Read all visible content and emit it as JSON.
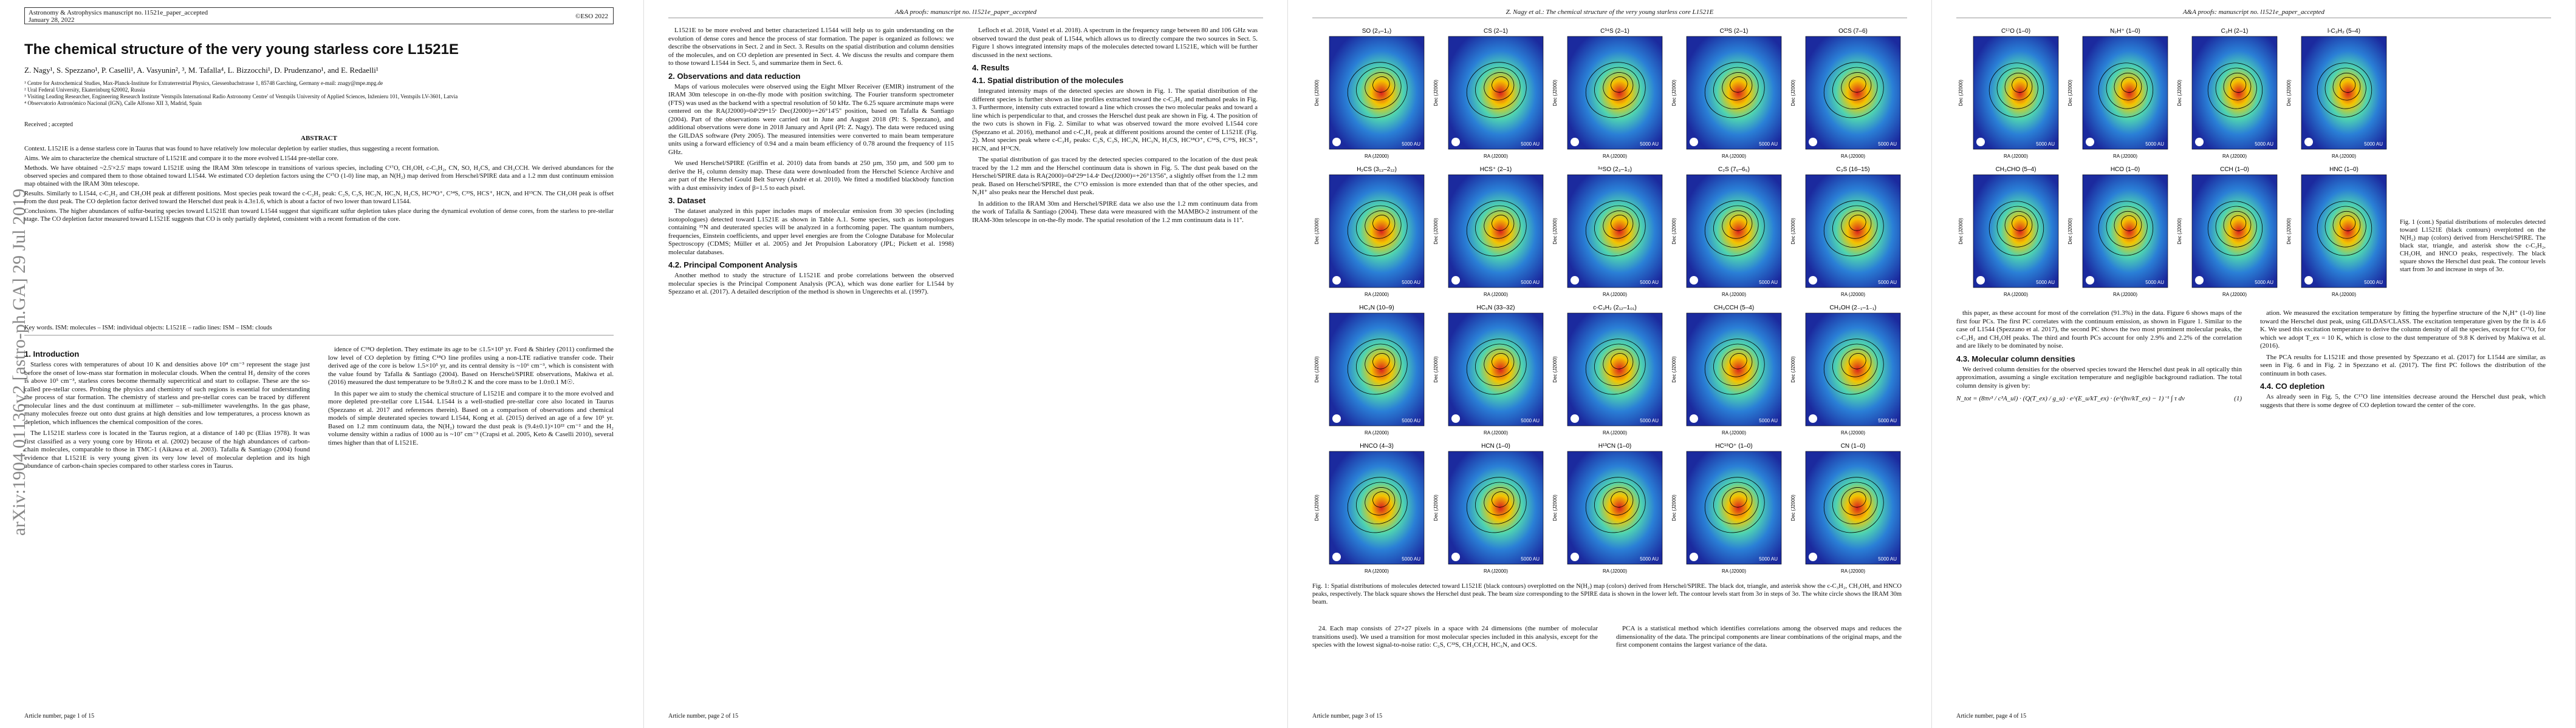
{
  "arxiv": "arXiv:1904.01136v2 [astro-ph.GA] 29 Jul 2019",
  "figure_axes": {
    "x": "RA (J2000)",
    "y": "Dec (J2000)",
    "scale": "5000 AU"
  },
  "pages": [
    {
      "journal": "Astronomy & Astrophysics manuscript no. l1521e_paper_accepted",
      "date": "January 28, 2022",
      "copyright": "©ESO 2022",
      "title": "The chemical structure of the very young starless core L1521E",
      "authors": "Z. Nagy¹, S. Spezzano¹, P. Caselli¹, A. Vasyunin², ³, M. Tafalla⁴, L. Bizzocchi¹, D. Prudenzano¹, and E. Redaelli¹",
      "affiliations": [
        "¹ Centre for Astrochemical Studies, Max-Planck-Institute for Extraterrestrial Physics, Giessenbachstrasse 1, 85748 Garching, Germany e-mail: znagy@mpe.mpg.de",
        "² Ural Federal University, Ekaterinburg 620002, Russia",
        "³ Visiting Leading Researcher, Engineering Research Institute 'Ventspils International Radio Astronomy Centre' of Ventspils University of Applied Sciences, Inženieru 101, Ventspils LV-3601, Latvia",
        "⁴ Observatorio Astronómico Nacional (IGN), Calle Alfonso XII 3, Madrid, Spain"
      ],
      "received": "Received ; accepted",
      "abstract_title": "ABSTRACT",
      "abstract": [
        "Context. L1521E is a dense starless core in Taurus that was found to have relatively low molecular depletion by earlier studies, thus suggesting a recent formation.",
        "Aims. We aim to characterize the chemical structure of L1521E and compare it to the more evolved L1544 pre-stellar core.",
        "Methods. We have obtained ~2.5'×2.5' maps toward L1521E using the IRAM 30m telescope in transitions of various species, including C¹⁷O, CH₃OH, c-C₃H₂, CN, SO, H₂CS, and CH₃CCH. We derived abundances for the observed species and compared them to those obtained toward L1544. We estimated CO depletion factors using the C¹⁷O (1-0) line map, an N(H₂) map derived from Herschel/SPIRE data and a 1.2 mm dust continuum emission map obtained with the IRAM 30m telescope.",
        "Results. Similarly to L1544, c-C₃H₂ and CH₃OH peak at different positions. Most species peak toward the c-C₃H₂ peak: C₂S, C₃S, HC₃N, HC₅N, H₂CS, HC¹⁸O⁺, C³⁴S, C³³S, HCS⁺, HCN, and H¹³CN. The CH₃OH peak is offset from the dust peak. The CO depletion factor derived toward the Herschel dust peak is 4.3±1.6, which is about a factor of two lower than toward L1544.",
        "Conclusions. The higher abundances of sulfur-bearing species toward L1521E than toward L1544 suggest that significant sulfur depletion takes place during the dynamical evolution of dense cores, from the starless to pre-stellar stage. The CO depletion factor measured toward L1521E suggests that CO is only partially depleted, consistent with a recent formation of the core."
      ],
      "keywords": "Key words. ISM: molecules – ISM: individual objects: L1521E – radio lines: ISM – ISM: clouds",
      "columns": [
        [
          {
            "heading": "1. Introduction"
          },
          {
            "text": "Starless cores with temperatures of about 10 K and densities above 10⁴ cm⁻³ represent the stage just before the onset of low-mass star formation in molecular clouds. When the central H₂ density of the cores is above 10⁵ cm⁻³, starless cores become thermally supercritical and start to collapse. These are the so-called pre-stellar cores. Probing the physics and chemistry of such regions is essential for understanding the process of star formation. The chemistry of starless and pre-stellar cores can be traced by different molecular lines and the dust continuum at millimeter – sub-millimeter wavelengths. In the gas phase, many molecules freeze out onto dust grains at high densities and low temperatures, a process known as depletion, which influences the chemical composition of the cores."
          },
          {
            "text": "The L1521E starless core is located in the Taurus region, at a distance of 140 pc (Elias 1978). It was first classified as a very young core by Hirota et al. (2002) because of the high abundances of carbon-chain molecules, comparable to those in TMC-1 (Aikawa et al. 2003). Tafalla & Santiago (2004) found evidence that L1521E is very young given its very low level of molecular depletion and its high abundance of carbon-chain species compared to other starless cores in Taurus."
          }
        ],
        [
          {
            "text": "idence of C¹⁸O depletion. They estimate its age to be ≤1.5×10⁵ yr. Ford & Shirley (2011) confirmed the low level of CO depletion by fitting C¹⁸O line profiles using a non-LTE radiative transfer code. Their derived age of the core is below 1.5×10⁵ yr, and its central density is ~10⁶ cm⁻³, which is consistent with the value found by Tafalla & Santiago (2004). Based on Herschel/SPIRE observations, Makiwa et al. (2016) measured the dust temperature to be 9.8±0.2 K and the core mass to be 1.0±0.1 M☉."
          },
          {
            "text": "In this paper we aim to study the chemical structure of L1521E and compare it to the more evolved and more depleted pre-stellar core L1544. L1544 is a well-studied pre-stellar core also located in Taurus (Spezzano et al. 2017 and references therein). Based on a comparison of observations and chemical models of simple deuterated species toward L1544, Kong et al. (2015) derived an age of a few 10⁵ yr. Based on 1.2 mm continuum data, the N(H₂) toward the dust peak is (9.4±0.1)×10²² cm⁻² and the H₂ volume density within a radius of 1000 au is ~10⁷ cm⁻³ (Crapsi et al. 2005, Keto & Caselli 2010), several times higher than that of L1521E."
          }
        ]
      ],
      "footer": "Article number, page 1 of 15"
    },
    {
      "header": "A&A proofs: manuscript no. l1521e_paper_accepted",
      "columns": [
        [
          {
            "text": "L1521E to be more evolved and better characterized L1544 will help us to gain understanding on the evolution of dense cores and hence the process of star formation. The paper is organized as follows: we describe the observations in Sect. 2 and in Sect. 3. Results on the spatial distribution and column densities of the molecules, and on CO depletion are presented in Sect. 4. We discuss the results and compare them to those toward L1544 in Sect. 5, and summarize them in Sect. 6."
          },
          {
            "heading": "2. Observations and data reduction"
          },
          {
            "text": "Maps of various molecules were observed using the Eight MIxer Receiver (EMIR) instrument of the IRAM 30m telescope in on-the-fly mode with position switching. The Fourier transform spectrometer (FTS) was used as the backend with a spectral resolution of 50 kHz. The 6.25 square arcminute maps were centered on the RA(J2000)=04ʰ29ᵐ15ˢ Dec(J2000)=+26°14'5'' position, based on Tafalla & Santiago (2004). Part of the observations were carried out in June and August 2018 (PI: S. Spezzano), and additional observations were done in 2018 January and April (PI: Z. Nagy). The data were reduced using the GILDAS software (Pety 2005). The measured intensities were converted to main beam temperature units using a forward efficiency of 0.94 and a main beam efficiency of 0.78 around the frequency of 115 GHz."
          },
          {
            "text": "We used Herschel/SPIRE (Griffin et al. 2010) data from bands at 250 µm, 350 µm, and 500 µm to derive the H₂ column density map. These data were downloaded from the Herschel Science Archive and are part of the Herschel Gould Belt Survey (André et al. 2010). We fitted a modified blackbody function with a dust emissivity index of β=1.5 to each pixel."
          },
          {
            "heading": "3. Dataset"
          },
          {
            "text": "The dataset analyzed in this paper includes maps of molecular emission from 30 species (including isotopologues) detected toward L1521E as shown in Table A.1. Some species, such as isotopologues containing ¹⁵N and deuterated species will be analyzed in a forthcoming paper. The quantum numbers, frequencies, Einstein coefficients, and upper level energies are from the Cologne Database for Molecular Spectroscopy (CDMS; Müller et al. 2005) and Jet Propulsion Laboratory (JPL; Pickett et al. 1998) molecular databases."
          },
          {
            "heading": "4.2. Principal Component Analysis"
          },
          {
            "text": "Another method to study the structure of L1521E and probe correlations between the observed molecular species is the Principal Component Analysis (PCA), which was done earlier for L1544 by Spezzano et al. (2017). A detailed description of the method is shown in Ungerechts et al. (1997)."
          }
        ],
        [
          {
            "text": "Lefloch et al. 2018, Vastel et al. 2018). A spectrum in the frequency range between 80 and 106 GHz was observed toward the dust peak of L1544, which allows us to directly compare the two sources in Sect. 5. Figure 1 shows integrated intensity maps of the molecules detected toward L1521E, which will be further discussed in the next sections."
          },
          {
            "heading": "4. Results"
          },
          {
            "heading": "4.1. Spatial distribution of the molecules"
          },
          {
            "text": "Integrated intensity maps of the detected species are shown in Fig. 1. The spatial distribution of the different species is further shown as line profiles extracted toward the c-C₃H₂ and methanol peaks in Fig. 3. Furthermore, intensity cuts extracted toward a line which crosses the two molecular peaks and toward a line which is perpendicular to that, and crosses the Herschel dust peak are shown in Fig. 4. The position of the two cuts is shown in Fig. 2. Similar to what was observed toward the more evolved L1544 core (Spezzano et al. 2016), methanol and c-C₃H₂ peak at different positions around the center of L1521E (Fig. 2). Most species peak where c-C₃H₂ peaks: C₂S, C₃S, HC₃N, HC₅N, H₂CS, HC¹⁸O⁺, C³⁴S, C³³S, HCS⁺, HCN, and H¹³CN."
          },
          {
            "text": "The spatial distribution of gas traced by the detected species compared to the location of the dust peak traced by the 1.2 mm and the Herschel continuum data is shown in Fig. 5. The dust peak based on the Herschel/SPIRE data is RA(2000)=04ʰ29ᵐ14.4ˢ Dec(J2000)=+26°13'56'', a slightly offset from the 1.2 mm peak. Based on Herschel/SPIRE, the C¹⁷O emission is more extended than that of the other species, and N₂H⁺ also peaks near the Herschel dust peak."
          },
          {
            "text": "In addition to the IRAM 30m and Herschel/SPIRE data we also use the 1.2 mm continuum data from the work of Tafalla & Santiago (2004). These data were measured with the MAMBO-2 instrument of the IRAM-30m telescope in on-the-fly mode. The spatial resolution of the 1.2 mm continuum data is 11''."
          }
        ]
      ],
      "footer": "Article number, page 2 of 15"
    },
    {
      "header": "Z. Nagy et al.: The chemical structure of the very young starless core L1521E",
      "panels": [
        "SO (2₃–1₂)",
        "CS (2–1)",
        "C³⁴S (2–1)",
        "C³³S (2–1)",
        "OCS (7–6)",
        "H₂CS (3₁₃–2₁₂)",
        "HCS⁺ (2–1)",
        "³⁴SO (2₃–1₂)",
        "C₂S (7₆–6₅)",
        "C₃S (16–15)",
        "HC₃N (10–9)",
        "HC₅N (33–32)",
        "c-C₃H₂ (2₁₂–1₀₁)",
        "CH₃CCH (5–4)",
        "CH₃OH (2₋₁–1₋₁)",
        "HNCO (4–3)",
        "HCN (1–0)",
        "H¹³CN (1–0)",
        "HC¹⁸O⁺ (1–0)",
        "CN (1–0)"
      ],
      "caption": "Fig. 1: Spatial distributions of molecules detected toward L1521E (black contours) overplotted on the N(H₂) map (colors) derived from Herschel/SPIRE. The black dot, triangle, and asterisk show the c-C₃H₂, CH₃OH, and HNCO peaks, respectively. The black square shows the Herschel dust peak. The beam size corresponding to the SPIRE data is shown in the lower left. The contour levels start from 3σ in steps of 3σ. The white circle shows the IRAM 30m beam.",
      "columns": [
        [
          {
            "text": "24. Each map consists of 27×27 pixels in a space with 24 dimensions (the number of molecular transitions used). We used a transition for most molecular species included in this analysis, except for the species with the lowest signal-to-noise ratio: C₃S, C³³S, CH₃CCH, HC₅N, and OCS."
          }
        ],
        [
          {
            "text": "PCA is a statistical method which identifies correlations among the observed maps and reduces the dimensionality of the data. The principal components are linear combinations of the original maps, and the first component contains the largest variance of the data."
          }
        ]
      ],
      "footer": "Article number, page 3 of 15"
    },
    {
      "header": "A&A proofs: manuscript no. l1521e_paper_accepted",
      "panels": [
        "C¹⁷O (1–0)",
        "N₂H⁺ (1–0)",
        "C₃H (2–1)",
        "l-C₃H₂ (5–4)",
        "CH₃CHO (5–4)",
        "HCO (1–0)",
        "CCH (1–0)",
        "HNC (1–0)"
      ],
      "caption": "Fig. 1 (cont.) Spatial distributions of molecules detected toward L1521E (black contours) overplotted on the N(H₂) map (colors) derived from Herschel/SPIRE. The black star, triangle, and asterisk show the c-C₃H₂, CH₃OH, and HNCO peaks, respectively. The black square shows the Herschel dust peak. The contour levels start from 3σ and increase in steps of 3σ.",
      "columns": [
        [
          {
            "text": "this paper, as these account for most of the correlation (91.3%) in the data. Figure 6 shows maps of the first four PCs. The first PC correlates with the continuum emission, as shown in Figure 1. Similar to the case of L1544 (Spezzano et al. 2017), the second PC shows the two most prominent molecular peaks, the c-C₃H₂ and CH₃OH peaks. The third and fourth PCs account for only 2.9% and 2.2% of the correlation and are likely to be dominated by noise."
          },
          {
            "heading": "4.3. Molecular column densities"
          },
          {
            "text": "We derived column densities for the observed species toward the Herschel dust peak in all optically thin approximation, assuming a single excitation temperature and negligible background radiation. The total column density is given by:"
          },
          {
            "equation": "N_tot = (8πν³ / c³A_ul) · (Q(T_ex) / g_u) · e^(E_u/kT_ex) · (e^(hν/kT_ex) − 1)⁻¹ ∫ τ dv",
            "number": "(1)"
          }
        ],
        [
          {
            "text": "ation. We measured the excitation temperature by fitting the hyperfine structure of the N₂H⁺ (1-0) line toward the Herschel dust peak, using GILDAS/CLASS. The excitation temperature given by the fit is 4.6 K. We used this excitation temperature to derive the column density of all the species, except for C¹⁷O, for which we adopt T_ex = 10 K, which is close to the dust temperature of 9.8 K derived by Makiwa et al. (2016)."
          },
          {
            "text": "The PCA results for L1521E and those presented by Spezzano et al. (2017) for L1544 are similar, as seen in Fig. 6 and in Fig. 2 in Spezzano et al. (2017). The first PC follows the distribution of the continuum in both cases."
          },
          {
            "heading": "4.4. CO depletion"
          },
          {
            "text": "As already seen in Fig. 5, the C¹⁷O line intensities decrease around the Herschel dust peak, which suggests that there is some degree of CO depletion toward the center of the core."
          }
        ]
      ],
      "footer": "Article number, page 4 of 15"
    }
  ]
}
